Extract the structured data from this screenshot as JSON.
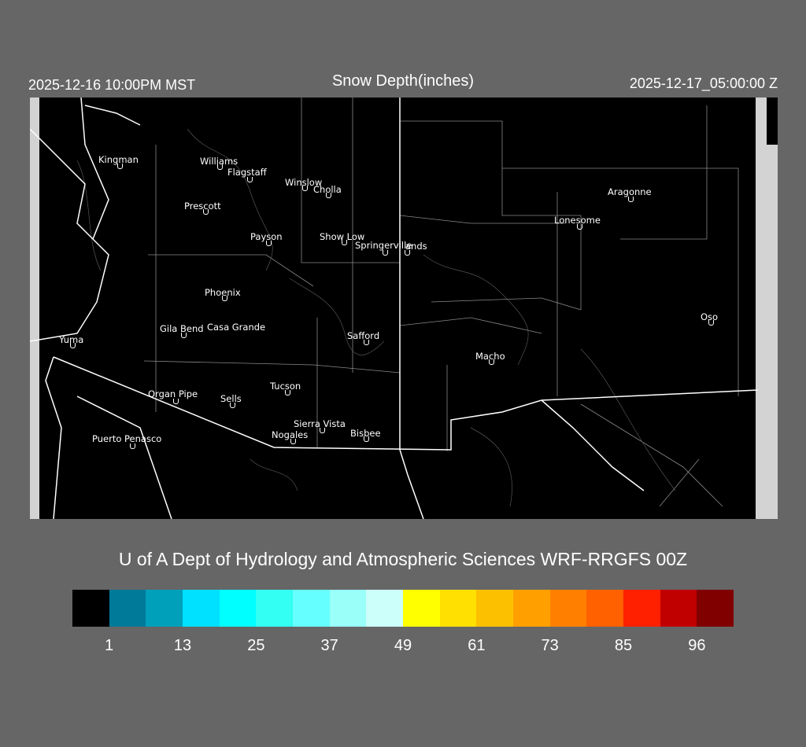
{
  "header": {
    "local_time": "2025-12-16 10:00PM MST",
    "title": "Snow Depth(inches)",
    "utc_time": "2025-12-17_05:00:00 Z"
  },
  "credit": "U of A Dept of Hydrology and Atmospheric Sciences WRF-RRGFS 00Z",
  "cities": [
    {
      "name": "Kingman"
    },
    {
      "name": "Williams"
    },
    {
      "name": "Flagstaff"
    },
    {
      "name": "Winslow"
    },
    {
      "name": "Cholla"
    },
    {
      "name": "Prescott"
    },
    {
      "name": "Payson"
    },
    {
      "name": "Show Low"
    },
    {
      "name": "Springerville"
    },
    {
      "name": "ands"
    },
    {
      "name": "Aragonne"
    },
    {
      "name": "Lonesome"
    },
    {
      "name": "Phoenix"
    },
    {
      "name": "Oso"
    },
    {
      "name": "Gila Bend"
    },
    {
      "name": "Casa Grande"
    },
    {
      "name": "Yuma"
    },
    {
      "name": "Safford"
    },
    {
      "name": "Macho"
    },
    {
      "name": "Tucson"
    },
    {
      "name": "Organ Pipe"
    },
    {
      "name": "Sells"
    },
    {
      "name": "Sierra Vista"
    },
    {
      "name": "Nogales"
    },
    {
      "name": "Bisbee"
    },
    {
      "name": "Puerto Penasco"
    }
  ],
  "colorbar": {
    "colors": [
      "#000000",
      "#007a99",
      "#00a0bb",
      "#00e0ff",
      "#00ffff",
      "#33fff2",
      "#66ffff",
      "#99fff8",
      "#ccfffa",
      "#ffff00",
      "#ffe000",
      "#fcc000",
      "#ffa000",
      "#ff8000",
      "#ff6000",
      "#ff2000",
      "#c00000",
      "#800000"
    ],
    "ticks": [
      "1",
      "13",
      "25",
      "37",
      "49",
      "61",
      "73",
      "85",
      "96"
    ]
  }
}
